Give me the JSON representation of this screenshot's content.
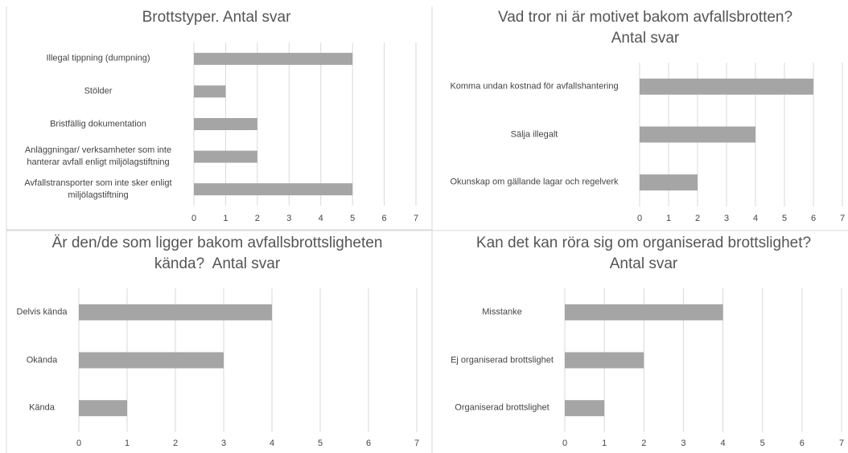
{
  "chart_data": [
    {
      "type": "bar",
      "orientation": "horizontal",
      "title": [
        "Brottstyper. Antal svar"
      ],
      "categories": [
        "Illegal tippning (dumpning)",
        "Stölder",
        "Bristfällig dokumentation",
        "Anläggningar/ verksamheter som inte hanterar avfall enligt miljölagstiftning",
        "Avfallstransporter som inte sker enligt miljölagstiftning"
      ],
      "values": [
        5,
        1,
        2,
        2,
        5
      ],
      "color": "#a5a5a5",
      "xlim": [
        0,
        7
      ],
      "xticks": [
        0,
        1,
        2,
        3,
        4,
        5,
        6,
        7
      ],
      "grid": true
    },
    {
      "type": "bar",
      "orientation": "horizontal",
      "title": [
        "Vad tror ni är motivet bakom avfallsbrotten?",
        "Antal svar"
      ],
      "categories": [
        "Komma undan kostnad för avfallshantering",
        "Sälja illegalt",
        "Okunskap om gällande lagar och regelverk"
      ],
      "values": [
        6,
        4,
        2
      ],
      "color": "#a5a5a5",
      "xlim": [
        0,
        7
      ],
      "xticks": [
        0,
        1,
        2,
        3,
        4,
        5,
        6,
        7
      ],
      "grid": true
    },
    {
      "type": "bar",
      "orientation": "horizontal",
      "title": [
        "Är den/de som ligger bakom avfallsbrottsligheten",
        "kända?  Antal svar"
      ],
      "categories": [
        "Delvis kända",
        "Okända",
        "Kända"
      ],
      "values": [
        4,
        3,
        1
      ],
      "color": "#a5a5a5",
      "xlim": [
        0,
        7
      ],
      "xticks": [
        0,
        1,
        2,
        3,
        4,
        5,
        6,
        7
      ],
      "grid": true
    },
    {
      "type": "bar",
      "orientation": "horizontal",
      "title": [
        "Kan det kan röra sig om organiserad brottslighet?",
        "Antal svar"
      ],
      "categories": [
        "Misstanke",
        "Ej organiserad brottslighet",
        "Organiserad brottslighet"
      ],
      "values": [
        4,
        2,
        1
      ],
      "color": "#a5a5a5",
      "xlim": [
        0,
        7
      ],
      "xticks": [
        0,
        1,
        2,
        3,
        4,
        5,
        6,
        7
      ],
      "grid": true
    }
  ]
}
